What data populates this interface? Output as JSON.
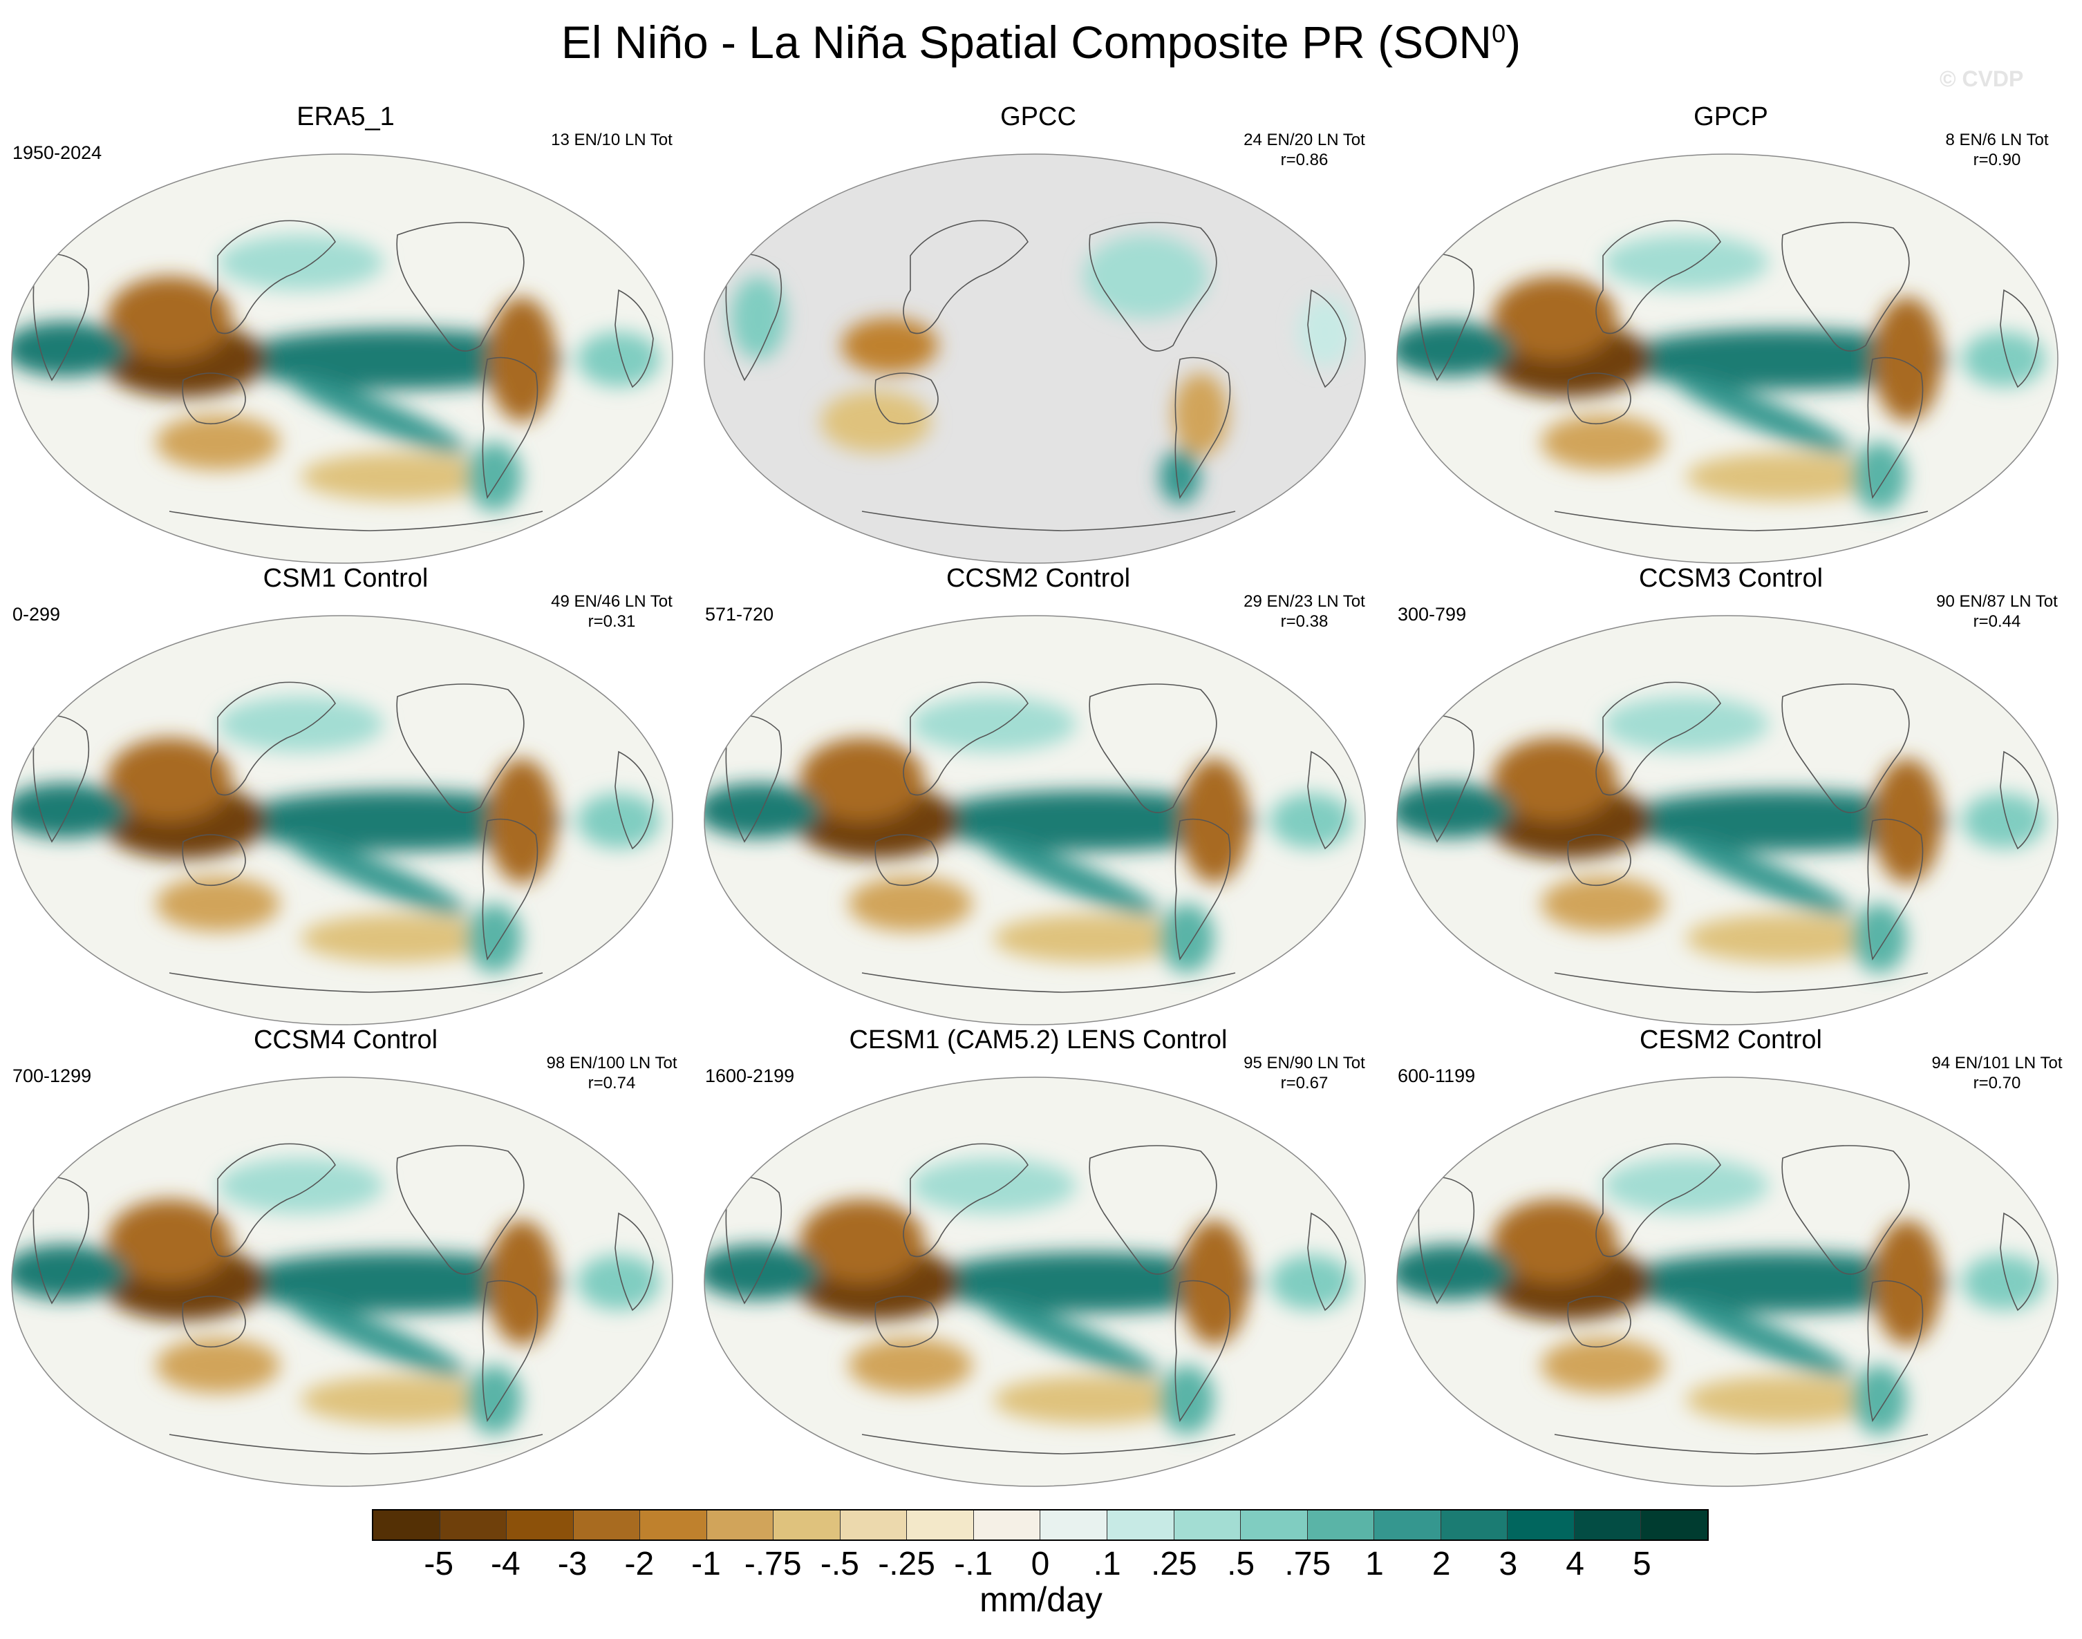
{
  "title": {
    "text": "El Niño - La Niña Spatial Composite PR (SON",
    "superscript": "0",
    "close": ")"
  },
  "watermark": "© CVDP",
  "panels": [
    {
      "title": "ERA5_1",
      "period": "1950-2024",
      "stats_line1": "13 EN/10 LN Tot",
      "stats_line2": "",
      "mask": false
    },
    {
      "title": "GPCC",
      "period": "",
      "stats_line1": "24 EN/20 LN Tot",
      "stats_line2": "r=0.86",
      "mask": true
    },
    {
      "title": "GPCP",
      "period": "",
      "stats_line1": "8 EN/6 LN Tot",
      "stats_line2": "r=0.90",
      "mask": false
    },
    {
      "title": "CSM1 Control",
      "period": "0-299",
      "stats_line1": "49 EN/46 LN Tot",
      "stats_line2": "r=0.31",
      "mask": false
    },
    {
      "title": "CCSM2 Control",
      "period": "571-720",
      "stats_line1": "29 EN/23 LN Tot",
      "stats_line2": "r=0.38",
      "mask": false
    },
    {
      "title": "CCSM3 Control",
      "period": "300-799",
      "stats_line1": "90 EN/87 LN Tot",
      "stats_line2": "r=0.44",
      "mask": false
    },
    {
      "title": "CCSM4 Control",
      "period": "700-1299",
      "stats_line1": "98 EN/100 LN Tot",
      "stats_line2": "r=0.74",
      "mask": false
    },
    {
      "title": "CESM1 (CAM5.2) LENS Control",
      "period": "1600-2199",
      "stats_line1": "95 EN/90 LN Tot",
      "stats_line2": "r=0.67",
      "mask": false
    },
    {
      "title": "CESM2 Control",
      "period": "600-1199",
      "stats_line1": "94 EN/101 LN Tot",
      "stats_line2": "r=0.70",
      "mask": false
    }
  ],
  "colorbar": {
    "unit": "mm/day",
    "labels": [
      "-5",
      "-4",
      "-3",
      "-2",
      "-1",
      "-.75",
      "-.5",
      "-.25",
      "-.1",
      "0",
      ".1",
      ".25",
      ".5",
      ".75",
      "1",
      "2",
      "3",
      "4",
      "5"
    ],
    "colors": [
      "#543005",
      "#6f400b",
      "#8c510a",
      "#a86b20",
      "#bf812d",
      "#d1a45a",
      "#dfc27d",
      "#ecd9ad",
      "#f3e8c9",
      "#f5f0e6",
      "#e8f2ef",
      "#c7eae5",
      "#a3ddd3",
      "#80cdc1",
      "#5ab4a7",
      "#35978f",
      "#1b7c73",
      "#01665e",
      "#034d44",
      "#003c30"
    ]
  },
  "chart_data": {
    "type": "heatmap",
    "title": "El Niño - La Niña Spatial Composite PR (SON0)",
    "unit": "mm/day",
    "levels": [
      -5,
      -4,
      -3,
      -2,
      -1,
      -0.75,
      -0.5,
      -0.25,
      -0.1,
      0,
      0.1,
      0.25,
      0.5,
      0.75,
      1,
      2,
      3,
      4,
      5
    ],
    "panels": [
      "ERA5_1",
      "GPCC",
      "GPCP",
      "CSM1 Control",
      "CCSM2 Control",
      "CCSM3 Control",
      "CCSM4 Control",
      "CESM1 (CAM5.2) LENS Control",
      "CESM2 Control"
    ]
  }
}
